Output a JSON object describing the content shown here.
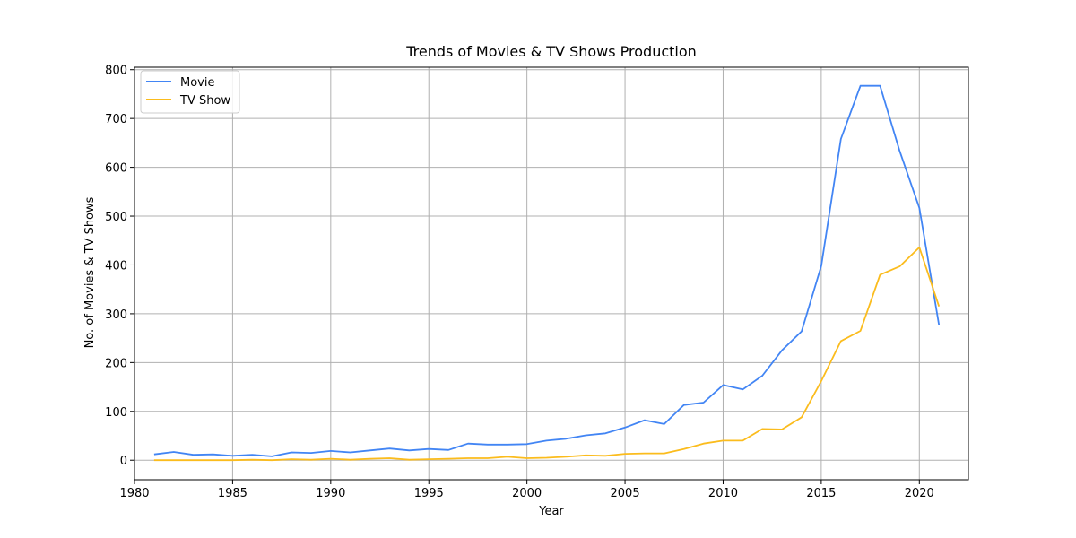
{
  "chart_data": {
    "type": "line",
    "title": "Trends of Movies & TV Shows Production",
    "xlabel": "Year",
    "ylabel": "No. of Movies & TV Shows",
    "xlim": [
      1980,
      2022.5
    ],
    "ylim": [
      -40,
      805
    ],
    "xticks": [
      1980,
      1985,
      1990,
      1995,
      2000,
      2005,
      2010,
      2015,
      2020
    ],
    "yticks": [
      0,
      100,
      200,
      300,
      400,
      500,
      600,
      700,
      800
    ],
    "grid": true,
    "legend_position": "top-left",
    "x": [
      1981,
      1982,
      1983,
      1984,
      1985,
      1986,
      1987,
      1988,
      1989,
      1990,
      1991,
      1992,
      1993,
      1994,
      1995,
      1996,
      1997,
      1998,
      1999,
      2000,
      2001,
      2002,
      2003,
      2004,
      2005,
      2006,
      2007,
      2008,
      2009,
      2010,
      2011,
      2012,
      2013,
      2014,
      2015,
      2016,
      2017,
      2018,
      2019,
      2020,
      2021
    ],
    "series": [
      {
        "name": "Movie",
        "color": "#4285f4",
        "values": [
          12,
          17,
          11,
          12,
          9,
          11,
          8,
          16,
          15,
          19,
          16,
          20,
          24,
          20,
          23,
          21,
          34,
          32,
          32,
          33,
          40,
          44,
          51,
          55,
          67,
          82,
          74,
          113,
          118,
          154,
          145,
          173,
          225,
          264,
          398,
          658,
          767,
          767,
          633,
          517,
          277
        ]
      },
      {
        "name": "TV Show",
        "color": "#fbbc1d",
        "values": [
          0,
          0,
          0,
          0,
          0,
          1,
          0,
          2,
          1,
          3,
          1,
          3,
          4,
          1,
          2,
          3,
          4,
          4,
          7,
          4,
          5,
          7,
          10,
          9,
          13,
          14,
          14,
          23,
          34,
          40,
          40,
          64,
          63,
          88,
          162,
          244,
          265,
          380,
          397,
          436,
          315
        ]
      }
    ]
  }
}
